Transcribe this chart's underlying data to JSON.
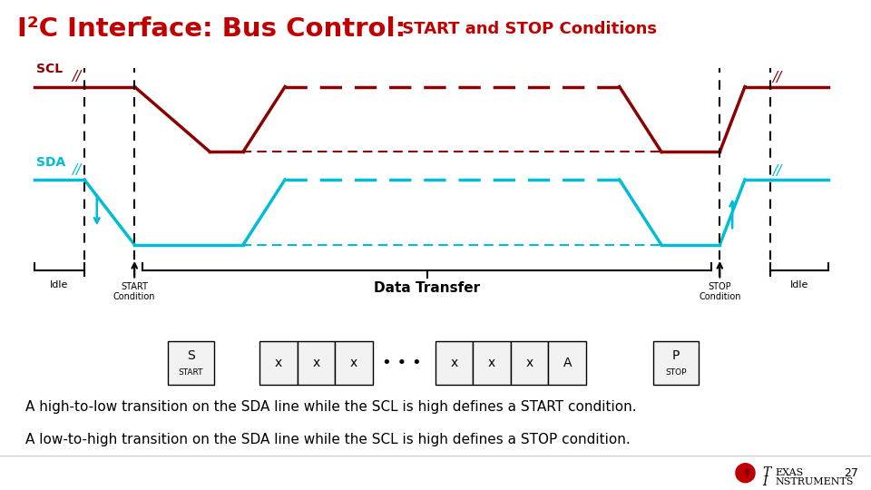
{
  "title_main": "I²C Interface: Bus Control:",
  "title_sub": " START and STOP Conditions",
  "title_color_main": "#C00000",
  "title_color_sub": "#C00000",
  "scl_color": "#8B0000",
  "sda_color": "#00BCD4",
  "bg_color": "#FFFFFF",
  "line1_text": "A high-to-low transition on the SDA line while the SCL is high defines a START condition.",
  "line2_text": "A low-to-high transition on the SDA line while the SCL is high defines a STOP condition.",
  "page_number": "27"
}
